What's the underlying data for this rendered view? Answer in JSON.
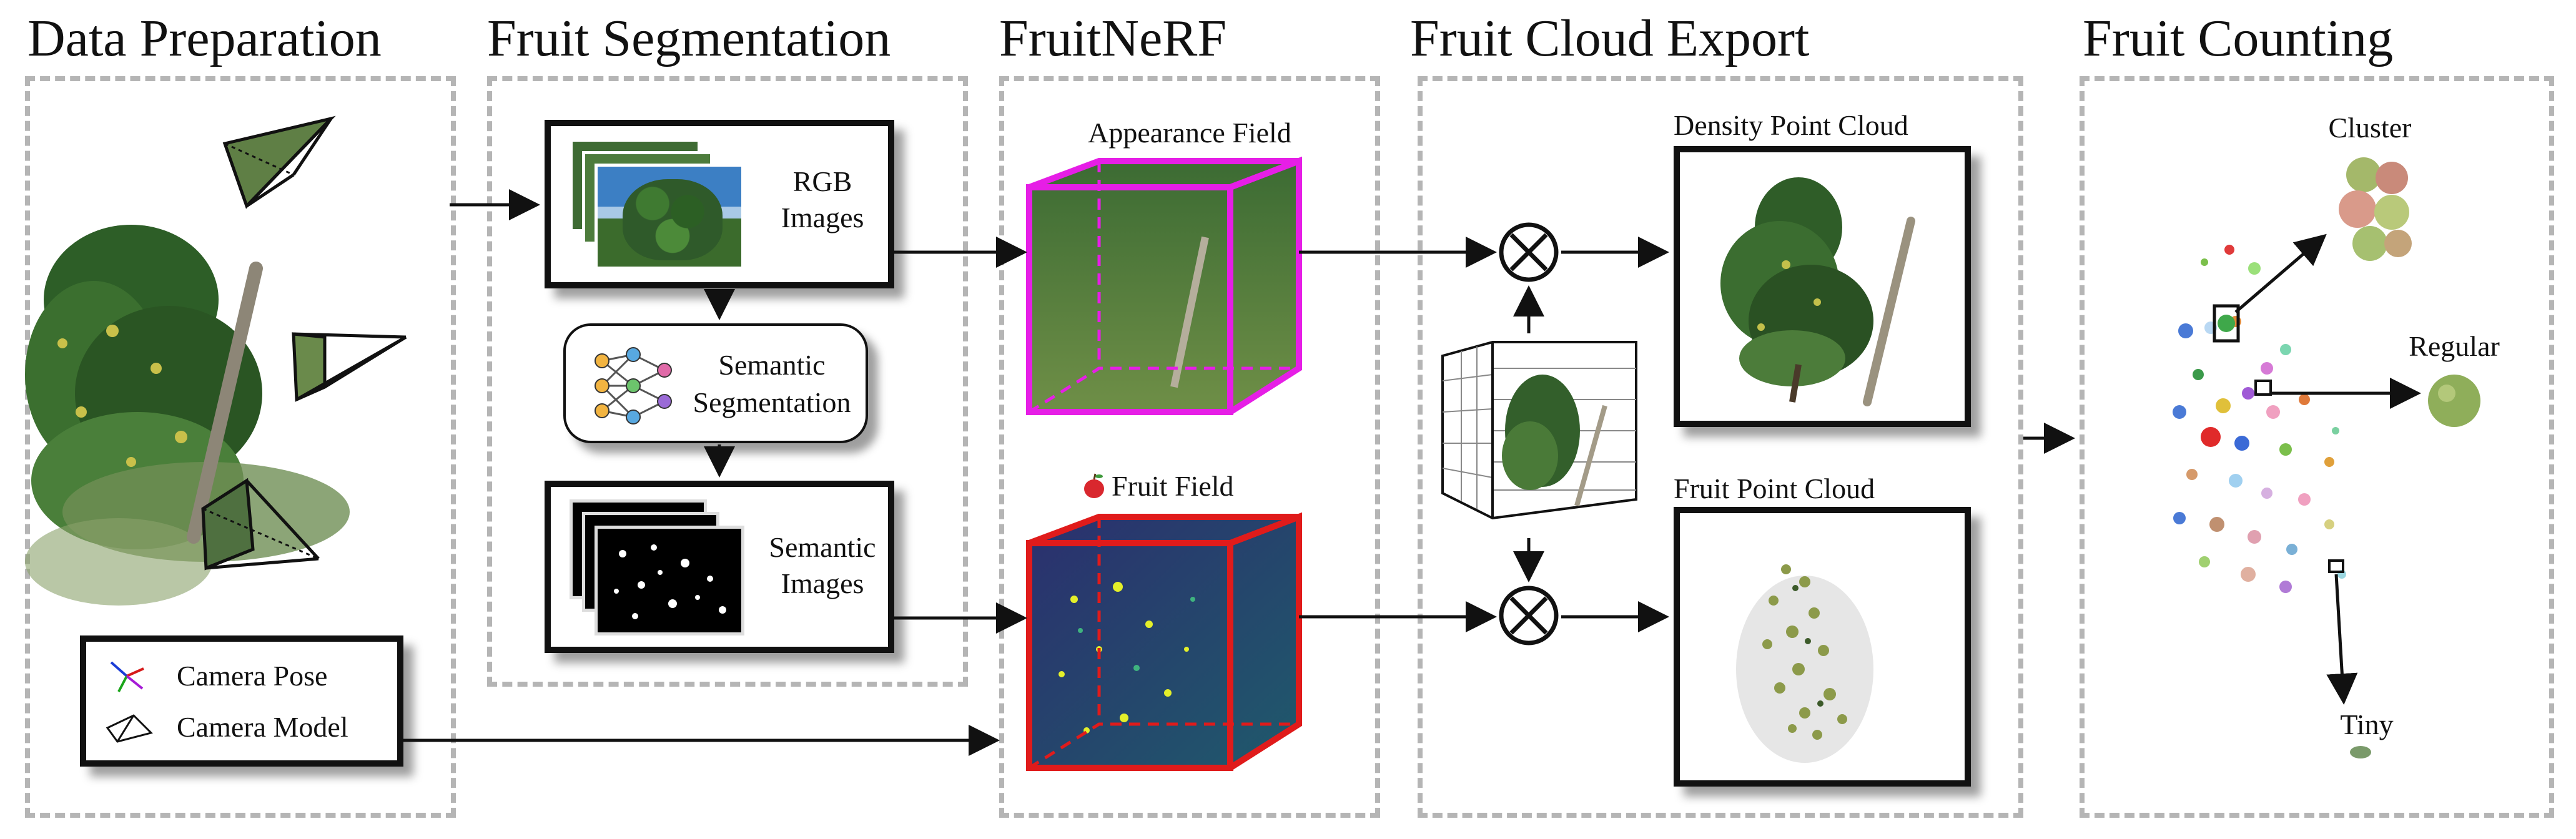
{
  "stages": {
    "data_preparation": "Data Preparation",
    "fruit_segmentation": "Fruit Segmentation",
    "fruitnerf": "FruitNeRF",
    "fruit_cloud_export": "Fruit Cloud Export",
    "fruit_counting": "Fruit Counting"
  },
  "data_preparation": {
    "legend": {
      "camera_pose": "Camera Pose",
      "camera_model": "Camera Model"
    }
  },
  "segmentation": {
    "rgb_images": [
      "RGB",
      "Images"
    ],
    "semantic_segmentation": [
      "Semantic",
      "Segmentation"
    ],
    "semantic_images": [
      "Semantic",
      "Images"
    ]
  },
  "fruitnerf": {
    "appearance_field": "Appearance Field",
    "fruit_field": "Fruit Field",
    "fruit_field_icon": "apple-icon"
  },
  "export": {
    "density_point_cloud": "Density Point Cloud",
    "fruit_point_cloud": "Fruit Point Cloud",
    "operator_icon": "circled-times-icon"
  },
  "counting": {
    "cluster": "Cluster",
    "regular": "Regular",
    "tiny": "Tiny"
  },
  "colors": {
    "panel_border": "#b5b5b5",
    "appearance_cube": "#e61ee6",
    "fruit_cube": "#e01b1b",
    "fruit_field_fill": "#2e2a6b"
  }
}
